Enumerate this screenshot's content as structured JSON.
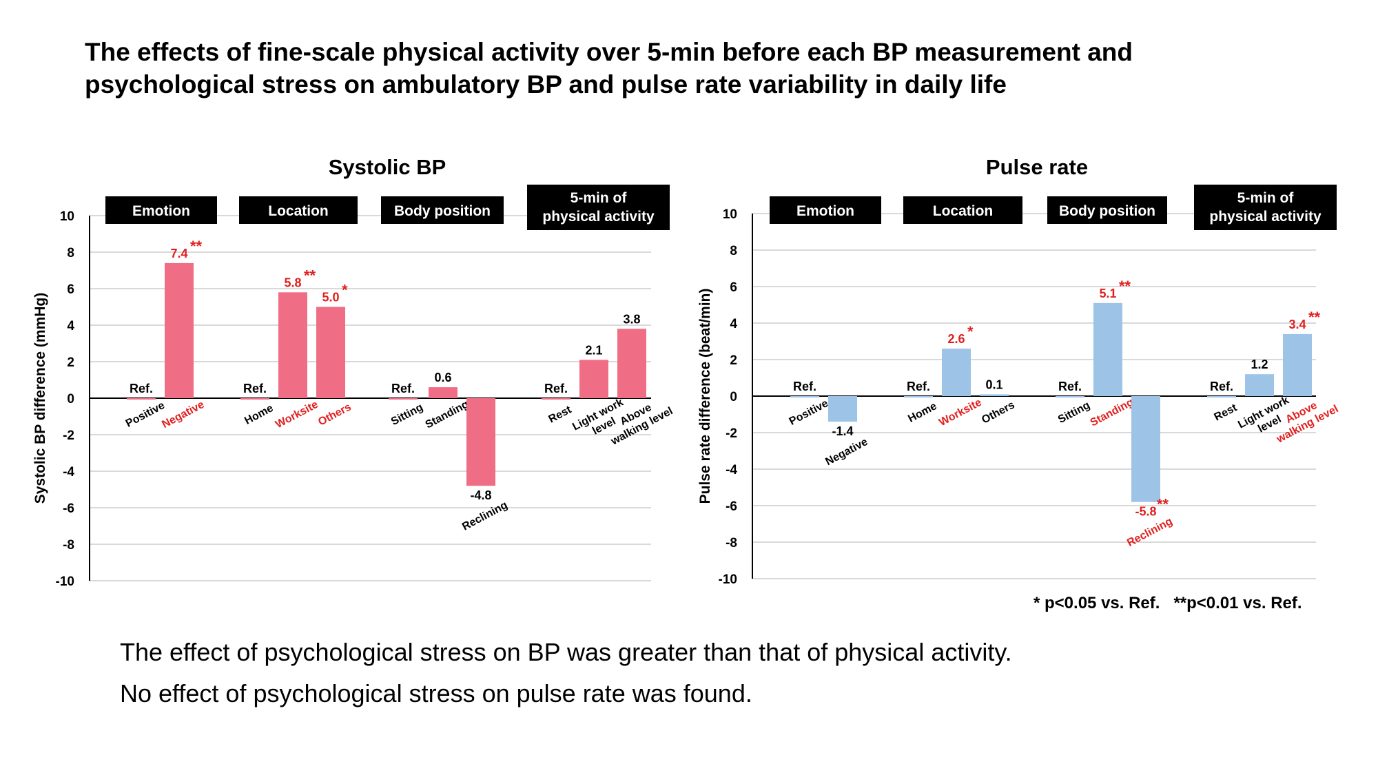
{
  "title": {
    "line1": "The effects of fine-scale physical activity over 5-min before each BP measurement and",
    "line2": "psychological stress on ambulatory BP and pulse rate variability in daily life"
  },
  "footnote": "* p<0.05 vs. Ref.   **p<0.01 vs. Ref.",
  "conclusions": [
    "The effect of psychological stress on BP was greater than that of physical activity.",
    "No effect of psychological stress on pulse rate was found."
  ],
  "colors": {
    "significant_text": "#e0201f",
    "normal_text": "#000000",
    "grid": "#d9d9d9",
    "header_box": "#000000",
    "header_text": "#ffffff"
  },
  "chart_data": [
    {
      "type": "bar",
      "title": "Systolic BP",
      "ylabel": "Systolic BP difference (mmHg)",
      "ylim": [
        -10,
        10
      ],
      "yticks": [
        "10",
        "8",
        "6",
        "4",
        "2",
        "0",
        "-2",
        "-4",
        "-6",
        "-8",
        "-10"
      ],
      "bar_color": "#f06e85",
      "grid": true,
      "groups": [
        {
          "header": [
            "Emotion"
          ],
          "bars": [
            {
              "category": "Positive",
              "value": 0,
              "label": "Ref.",
              "sig": "",
              "highlight": false
            },
            {
              "category": "Negative",
              "value": 7.4,
              "label": "7.4",
              "sig": "**",
              "highlight": true
            }
          ]
        },
        {
          "header": [
            "Location"
          ],
          "bars": [
            {
              "category": "Home",
              "value": 0,
              "label": "Ref.",
              "sig": "",
              "highlight": false
            },
            {
              "category": "Worksite",
              "value": 5.8,
              "label": "5.8",
              "sig": "**",
              "highlight": true
            },
            {
              "category": "Others",
              "value": 5.0,
              "label": "5.0",
              "sig": "*",
              "highlight": true
            }
          ]
        },
        {
          "header": [
            "Body position"
          ],
          "bars": [
            {
              "category": "Sitting",
              "value": 0,
              "label": "Ref.",
              "sig": "",
              "highlight": false
            },
            {
              "category": "Standing",
              "value": 0.6,
              "label": "0.6",
              "sig": "",
              "highlight": false
            },
            {
              "category": "Reclining",
              "value": -4.8,
              "label": "-4.8",
              "sig": "",
              "highlight": false
            }
          ]
        },
        {
          "header": [
            "5-min of",
            "physical activity"
          ],
          "bars": [
            {
              "category": "Rest",
              "value": 0,
              "label": "Ref.",
              "sig": "",
              "highlight": false
            },
            {
              "category": "Light work\nlevel",
              "value": 2.1,
              "label": "2.1",
              "sig": "",
              "highlight": false
            },
            {
              "category": "Above\nwalking level",
              "value": 3.8,
              "label": "3.8",
              "sig": "",
              "highlight": false
            }
          ]
        }
      ]
    },
    {
      "type": "bar",
      "title": "Pulse rate",
      "ylabel": "Pulse rate difference  (beat/min)",
      "ylim": [
        -10,
        10
      ],
      "yticks": [
        "10",
        "8",
        "6",
        "4",
        "2",
        "0",
        "-2",
        "-4",
        "-6",
        "-8",
        "-10"
      ],
      "bar_color": "#9dc3e6",
      "grid": true,
      "groups": [
        {
          "header": [
            "Emotion"
          ],
          "bars": [
            {
              "category": "Positive",
              "value": 0,
              "label": "Ref.",
              "sig": "",
              "highlight": false
            },
            {
              "category": "Negative",
              "value": -1.4,
              "label": "-1.4",
              "sig": "",
              "highlight": false
            }
          ]
        },
        {
          "header": [
            "Location"
          ],
          "bars": [
            {
              "category": "Home",
              "value": 0,
              "label": "Ref.",
              "sig": "",
              "highlight": false
            },
            {
              "category": "Worksite",
              "value": 2.6,
              "label": "2.6",
              "sig": "*",
              "highlight": true
            },
            {
              "category": "Others",
              "value": 0.1,
              "label": "0.1",
              "sig": "",
              "highlight": false
            }
          ]
        },
        {
          "header": [
            "Body position"
          ],
          "bars": [
            {
              "category": "Sitting",
              "value": 0,
              "label": "Ref.",
              "sig": "",
              "highlight": false
            },
            {
              "category": "Standing",
              "value": 5.1,
              "label": "5.1",
              "sig": "**",
              "highlight": true
            },
            {
              "category": "Reclining",
              "value": -5.8,
              "label": "-5.8",
              "sig": "**",
              "highlight": true
            }
          ]
        },
        {
          "header": [
            "5-min of",
            "physical activity"
          ],
          "bars": [
            {
              "category": "Rest",
              "value": 0,
              "label": "Ref.",
              "sig": "",
              "highlight": false
            },
            {
              "category": "Light work\nlevel",
              "value": 1.2,
              "label": "1.2",
              "sig": "",
              "highlight": false
            },
            {
              "category": "Above\nwalking level",
              "value": 3.4,
              "label": "3.4",
              "sig": "**",
              "highlight": true
            }
          ]
        }
      ]
    }
  ]
}
